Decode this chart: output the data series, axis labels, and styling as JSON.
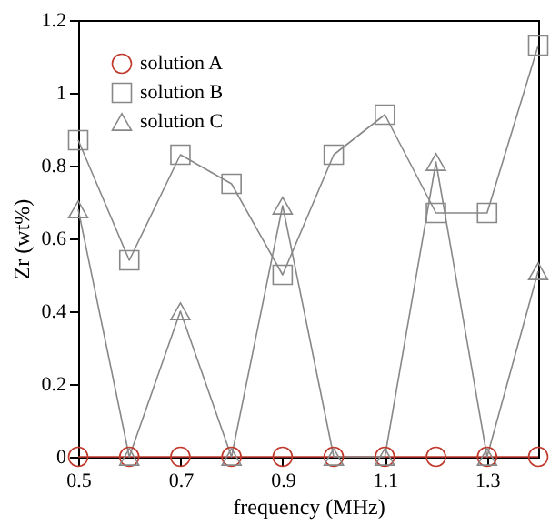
{
  "chart_data": {
    "type": "line",
    "xlabel": "frequency (MHz)",
    "ylabel": "Zr (wt%)",
    "x": [
      0.5,
      0.6,
      0.7,
      0.8,
      0.9,
      1.0,
      1.1,
      1.2,
      1.3,
      1.4
    ],
    "series": [
      {
        "name": "solution A",
        "color": "#c0392b",
        "marker": "circle",
        "values": [
          0,
          0,
          0,
          0,
          0,
          0,
          0,
          0,
          0,
          0
        ]
      },
      {
        "name": "solution B",
        "color": "#888888",
        "marker": "square",
        "values": [
          0.87,
          0.54,
          0.83,
          0.75,
          0.5,
          0.83,
          0.94,
          0.67,
          0.67,
          1.13
        ]
      },
      {
        "name": "solution C",
        "color": "#888888",
        "marker": "triangle",
        "values": [
          0.68,
          0,
          0.4,
          0,
          0.69,
          0,
          0,
          0.81,
          0,
          0.51
        ]
      }
    ],
    "xlim": [
      0.5,
      1.4
    ],
    "xticks": [
      0.5,
      0.7,
      0.9,
      1.1,
      1.3
    ],
    "ylim": [
      0,
      1.2
    ],
    "yticks": [
      0,
      0.2,
      0.4,
      0.6,
      0.8,
      1,
      1.2
    ],
    "grid": false,
    "legend": "top left"
  }
}
